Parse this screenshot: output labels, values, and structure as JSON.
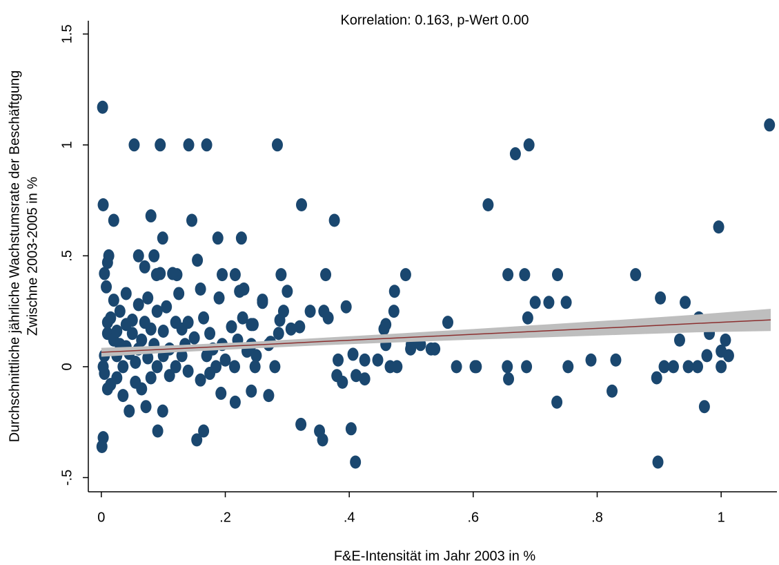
{
  "chart_data": {
    "type": "scatter",
    "title": "Korrelation: 0.163, p-Wert 0.00",
    "xlabel": "F&E-Intensität im Jahr 2003 in %",
    "ylabel": [
      "Durchschnittliche jährliche Wachstumsrate der Beschäftgung",
      "Zwischne 2003-2005 in %"
    ],
    "xlim": [
      -0.021,
      1.09
    ],
    "ylim": [
      -0.564,
      1.56
    ],
    "xticks": [
      0,
      {
        "value": 0.2,
        "label": ".2"
      },
      {
        "value": 0.4,
        "label": ".4"
      },
      {
        "value": 0.6,
        "label": ".6"
      },
      {
        "value": 0.8,
        "label": ".8"
      },
      1
    ],
    "yticks": [
      {
        "value": -0.5,
        "label": "-.5"
      },
      0,
      {
        "value": 0.5,
        "label": ".5"
      },
      1,
      1.5
    ],
    "grid": false,
    "series": [
      {
        "color": "#1a476f",
        "x": [
          0.002,
          0.003,
          0.053,
          0.095,
          0.141,
          0.17,
          0.284,
          0.323,
          0.376,
          0.02,
          0.08,
          0.146,
          0.099,
          0.188,
          0.226,
          0.122,
          0.089,
          0.195,
          0.216,
          0.29,
          0.362,
          0.491,
          0.656,
          0.683,
          0.736,
          0.862,
          0.668,
          0.69,
          0.624,
          1.078,
          0.996,
          0.902,
          0.942,
          0.7,
          0.722,
          0.75,
          0.688,
          0.559,
          0.964,
          0.981,
          0.933,
          1.007,
          0.79,
          0.83,
          0.655,
          0.686,
          0.753,
          0.573,
          0.603,
          0.605,
          0.908,
          0.923,
          0.947,
          0.962,
          1.0,
          0.977,
          1.012,
          1.0,
          0.896,
          0.657,
          0.824,
          0.735,
          0.973,
          0.898,
          0.41,
          0.403,
          0.322,
          0.352,
          0.357,
          0.165,
          0.154,
          0.091,
          0.099,
          0.003,
          0.001,
          0.072,
          0.27,
          0.216,
          0.242,
          0.193,
          0.337,
          0.32,
          0.306,
          0.359,
          0.366,
          0.395,
          0.473,
          0.472,
          0.459,
          0.456,
          0.446,
          0.425,
          0.425,
          0.411,
          0.406,
          0.382,
          0.38,
          0.389,
          0.459,
          0.466,
          0.477,
          0.5,
          0.515,
          0.532,
          0.499,
          0.538,
          0.273,
          0.286,
          0.288,
          0.294,
          0.3,
          0.26,
          0.242,
          0.228,
          0.223,
          0.242,
          0.248,
          0.005,
          0.01,
          0.012,
          0.008,
          0.01,
          0.01,
          0.005,
          0.003,
          0.005,
          0.01,
          0.015,
          0.02,
          0.02,
          0.025,
          0.025,
          0.03,
          0.03,
          0.035,
          0.035,
          0.04,
          0.04,
          0.045,
          0.045,
          0.05,
          0.05,
          0.055,
          0.055,
          0.06,
          0.06,
          0.065,
          0.065,
          0.07,
          0.07,
          0.075,
          0.075,
          0.08,
          0.08,
          0.085,
          0.085,
          0.09,
          0.09,
          0.095,
          0.1,
          0.1,
          0.105,
          0.11,
          0.115,
          0.12,
          0.12,
          0.125,
          0.13,
          0.13,
          0.135,
          0.14,
          0.14,
          0.15,
          0.155,
          0.16,
          0.165,
          0.17,
          0.175,
          0.18,
          0.185,
          0.19,
          0.195,
          0.2,
          0.21,
          0.215,
          0.22,
          0.23,
          0.235,
          0.245,
          0.25,
          0.26,
          0.27,
          0.28,
          0.015,
          0.025,
          0.04,
          0.06,
          0.11,
          0.16,
          0.175
        ],
        "values": [
          1.17,
          0.73,
          1.0,
          1.0,
          1.0,
          1.0,
          1.0,
          0.73,
          0.66,
          0.66,
          0.68,
          0.66,
          0.58,
          0.58,
          0.58,
          0.415,
          0.415,
          0.415,
          0.415,
          0.415,
          0.415,
          0.415,
          0.415,
          0.415,
          0.415,
          0.415,
          0.96,
          1.0,
          0.73,
          1.09,
          0.63,
          0.31,
          0.29,
          0.29,
          0.29,
          0.29,
          0.22,
          0.2,
          0.22,
          0.15,
          0.12,
          0.12,
          0.03,
          0.03,
          0,
          0,
          0,
          0,
          0,
          0,
          0,
          0,
          0,
          0,
          0,
          0.05,
          0.05,
          0.07,
          -0.05,
          -0.055,
          -0.11,
          -0.16,
          -0.18,
          -0.43,
          -0.43,
          -0.28,
          -0.26,
          -0.29,
          -0.33,
          -0.29,
          -0.33,
          -0.29,
          -0.2,
          -0.32,
          -0.36,
          -0.18,
          -0.13,
          -0.16,
          -0.11,
          -0.12,
          0.25,
          0.18,
          0.17,
          0.25,
          0.22,
          0.27,
          0.34,
          0.25,
          0.19,
          0.17,
          0.03,
          0.03,
          -0.055,
          -0.04,
          0.056,
          0.03,
          -0.04,
          -0.07,
          0.1,
          0,
          0,
          0.1,
          0.1,
          0.08,
          0.08,
          0.08,
          0.11,
          0.15,
          0.21,
          0.25,
          0.34,
          0.29,
          0.19,
          0.22,
          0.34,
          0.1,
          0,
          0.42,
          0.47,
          0.5,
          0.36,
          0.2,
          0.15,
          0.05,
          0,
          -0.03,
          -0.1,
          0.22,
          0.12,
          0.3,
          0.05,
          -0.05,
          0.25,
          0.1,
          0.0,
          -0.13,
          0.19,
          0.33,
          0.06,
          -0.2,
          0.21,
          0.15,
          0.02,
          -0.07,
          0.5,
          0.28,
          0.12,
          -0.1,
          0.45,
          0.2,
          0.04,
          0.31,
          0.17,
          -0.05,
          0.5,
          0.1,
          0.25,
          0.0,
          0.42,
          0.16,
          0.05,
          0.27,
          0.08,
          0.42,
          0.2,
          0.0,
          0.33,
          0.17,
          0.05,
          0.1,
          0.2,
          -0.02,
          0.13,
          0.48,
          0.35,
          0.22,
          0.05,
          0.15,
          0.08,
          0.0,
          0.31,
          0.1,
          0.03,
          0.18,
          0.0,
          0.12,
          0.35,
          0.07,
          0.19,
          0.05,
          0.3,
          0.1,
          0.0,
          -0.08,
          0.16,
          0.09,
          0.08,
          -0.04,
          -0.06,
          -0.03
        ]
      }
    ],
    "fit": {
      "color": "#8b2e2e",
      "band_color": "#bebebe",
      "x": [
        0,
        0.12,
        0.24,
        0.36,
        0.48,
        0.6,
        0.72,
        0.84,
        0.96,
        1.08
      ],
      "values": [
        0.065,
        0.081,
        0.097,
        0.114,
        0.13,
        0.146,
        0.162,
        0.178,
        0.195,
        0.211
      ],
      "ci_lower": [
        0.045,
        0.065,
        0.082,
        0.097,
        0.11,
        0.122,
        0.133,
        0.144,
        0.155,
        0.161
      ],
      "ci_upper": [
        0.085,
        0.097,
        0.112,
        0.131,
        0.15,
        0.17,
        0.191,
        0.212,
        0.235,
        0.261
      ]
    }
  }
}
